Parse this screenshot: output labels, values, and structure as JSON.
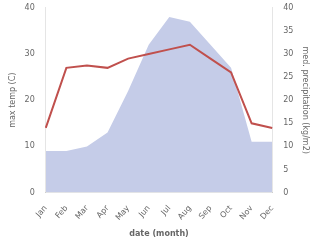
{
  "chart_data": {
    "type": "line",
    "xlabel": "date (month)",
    "ylabel": "max temp (C)",
    "y2label": "med. precipitation (kg/m2)",
    "categories": [
      "Jan",
      "Feb",
      "Mar",
      "Apr",
      "May",
      "Jun",
      "Jul",
      "Aug",
      "Sep",
      "Oct",
      "Nov",
      "Dec"
    ],
    "series": [
      {
        "type": "area",
        "color": "#c5cce8",
        "axis": "y2",
        "values": [
          9,
          9,
          10,
          13,
          22,
          32,
          38,
          37,
          32,
          27,
          11,
          11
        ]
      },
      {
        "type": "line",
        "color": "#c0504d",
        "values": [
          14,
          27,
          27.5,
          27,
          29,
          30,
          31,
          32,
          29,
          26,
          15,
          14
        ]
      }
    ],
    "ylim": [
      0,
      40
    ],
    "yticks": [
      0,
      10,
      20,
      30,
      40
    ],
    "y2lim": [
      0,
      40
    ],
    "y2ticks": [
      0,
      5,
      10,
      15,
      20,
      25,
      30,
      35,
      40
    ],
    "grid": false
  }
}
